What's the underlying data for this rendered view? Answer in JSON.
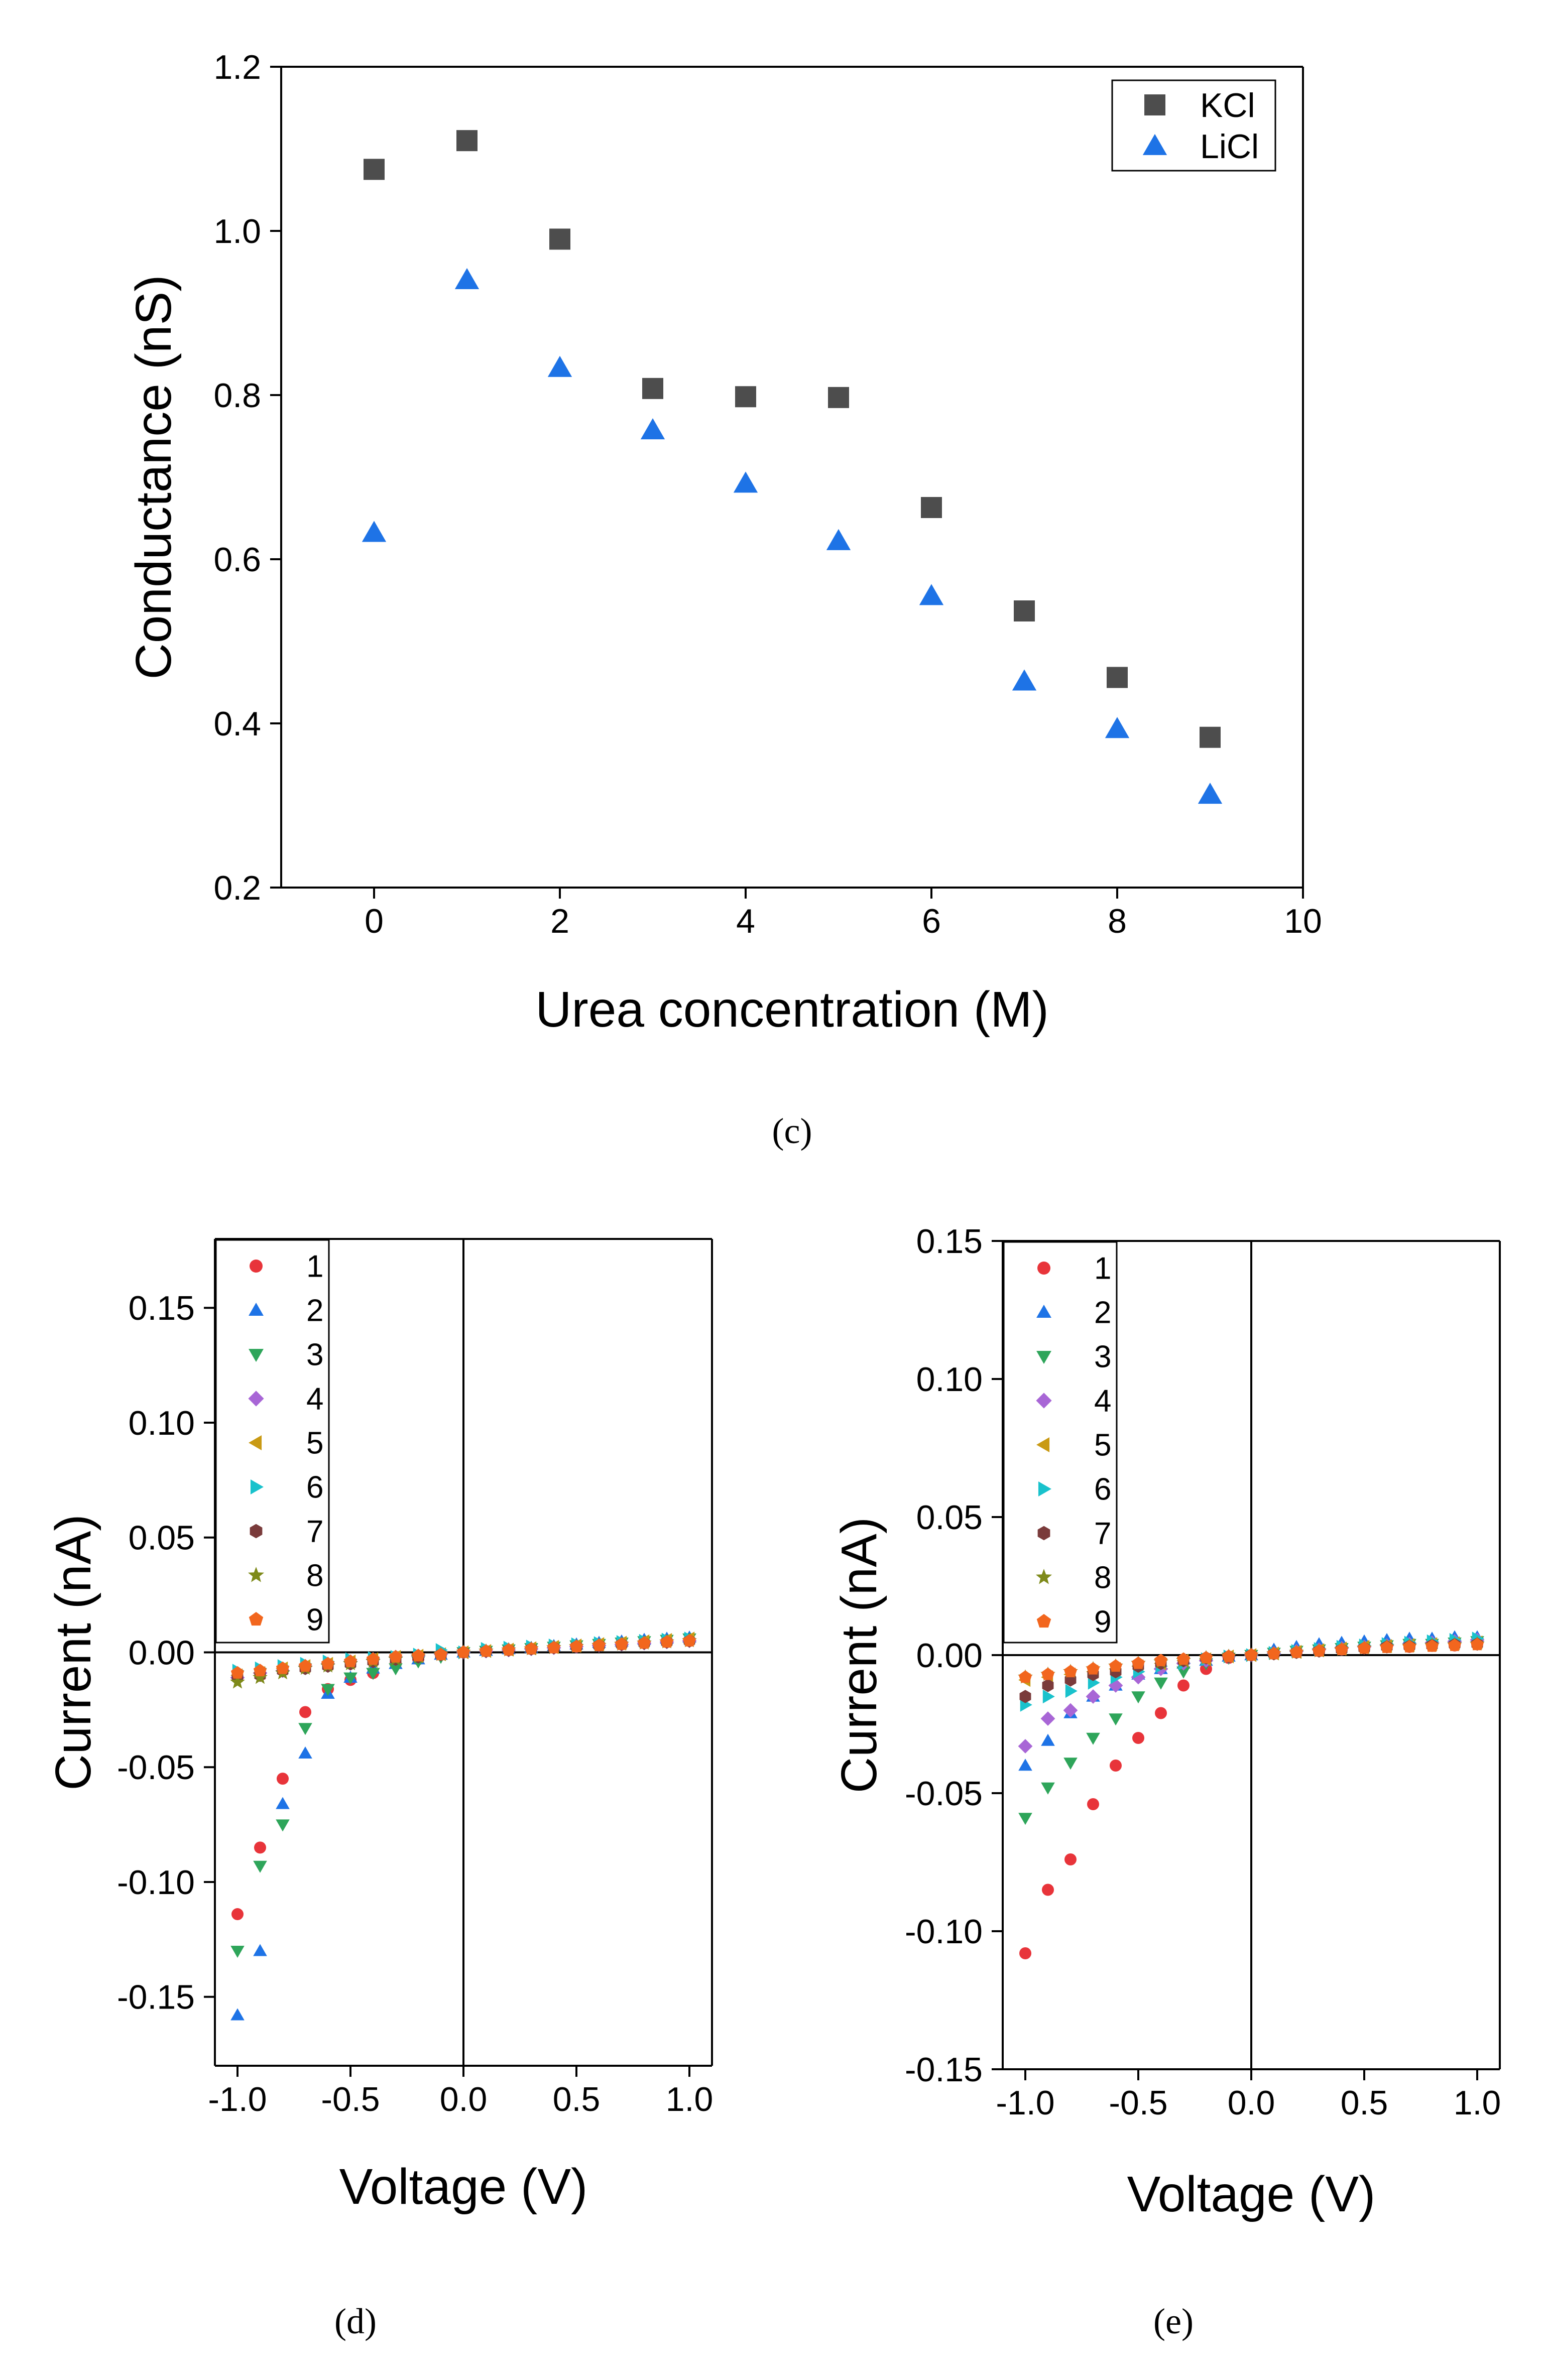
{
  "chart_data": [
    {
      "id": "c",
      "type": "scatter",
      "caption": "(c)",
      "xlabel": "Urea concentration (M)",
      "ylabel": "Conductance (nS)",
      "xlim": [
        -1,
        10
      ],
      "ylim": [
        0.2,
        1.2
      ],
      "xticks": [
        0,
        2,
        4,
        6,
        8,
        10
      ],
      "xtick_labels": [
        "0",
        "2",
        "4",
        "6",
        "8",
        "10"
      ],
      "yticks": [
        0.2,
        0.4,
        0.6,
        0.8,
        1.0,
        1.2
      ],
      "ytick_labels": [
        "0.2",
        "0.4",
        "0.6",
        "0.8",
        "1.0",
        "1.2"
      ],
      "legend_position": "top-right",
      "series": [
        {
          "name": "KCl",
          "marker": "square",
          "color": "#4d4d4d",
          "x": [
            0,
            1,
            2,
            3,
            4,
            5,
            6,
            7,
            8,
            9
          ],
          "y": [
            1.075,
            1.11,
            0.99,
            0.808,
            0.798,
            0.797,
            0.663,
            0.537,
            0.456,
            0.383
          ]
        },
        {
          "name": "LiCl",
          "marker": "triangle-up",
          "color": "#1e73e6",
          "x": [
            0,
            1,
            2,
            3,
            4,
            5,
            6,
            7,
            8,
            9
          ],
          "y": [
            0.632,
            0.94,
            0.833,
            0.757,
            0.692,
            0.622,
            0.555,
            0.451,
            0.393,
            0.313
          ]
        }
      ]
    },
    {
      "id": "d",
      "type": "scatter",
      "caption": "(d)",
      "xlabel": "Voltage (V)",
      "ylabel": "Current (nA)",
      "xlim": [
        -1.1,
        1.1
      ],
      "ylim": [
        -0.18,
        0.18
      ],
      "xticks": [
        -1.0,
        -0.5,
        0.0,
        0.5,
        1.0
      ],
      "xtick_labels": [
        "-1.0",
        "-0.5",
        "0.0",
        "0.5",
        "1.0"
      ],
      "yticks": [
        -0.15,
        -0.1,
        -0.05,
        0.0,
        0.05,
        0.1,
        0.15
      ],
      "ytick_labels": [
        "-0.15",
        "-0.10",
        "-0.05",
        "0.00",
        "0.05",
        "0.10",
        "0.15"
      ],
      "legend_position": "top-left",
      "x": [
        -1.0,
        -0.9,
        -0.8,
        -0.7,
        -0.6,
        -0.5,
        -0.4,
        -0.3,
        -0.2,
        -0.1,
        0.0,
        0.1,
        0.2,
        0.3,
        0.4,
        0.5,
        0.6,
        0.7,
        0.8,
        0.9,
        1.0
      ],
      "series": [
        {
          "name": "1",
          "marker": "circle",
          "color": "#e8343a",
          "y": [
            -0.114,
            -0.085,
            -0.055,
            -0.026,
            -0.016,
            -0.012,
            -0.009,
            -0.005,
            -0.003,
            -0.001,
            0.0,
            0.0005,
            0.001,
            0.0015,
            0.002,
            0.0025,
            0.003,
            0.0035,
            0.004,
            0.0045,
            0.005
          ]
        },
        {
          "name": "2",
          "marker": "triangle-up",
          "color": "#1e73e6",
          "y": [
            -0.158,
            -0.13,
            -0.066,
            -0.044,
            -0.018,
            -0.011,
            -0.007,
            -0.005,
            -0.003,
            -0.001,
            0.0,
            0.0007,
            0.0014,
            0.002,
            0.0028,
            0.0035,
            0.0042,
            0.0048,
            0.0055,
            0.006,
            0.0065
          ]
        },
        {
          "name": "3",
          "marker": "triangle-down",
          "color": "#2ea55a",
          "y": [
            -0.13,
            -0.093,
            -0.075,
            -0.033,
            -0.016,
            -0.011,
            -0.009,
            -0.007,
            -0.004,
            -0.002,
            0.0,
            0.0006,
            0.0012,
            0.0018,
            0.0024,
            0.003,
            0.0036,
            0.0042,
            0.0048,
            0.0054,
            0.006
          ]
        },
        {
          "name": "4",
          "marker": "diamond",
          "color": "#a866d6",
          "y": [
            -0.011,
            -0.009,
            -0.008,
            -0.006,
            -0.005,
            -0.004,
            -0.003,
            -0.002,
            -0.0015,
            -0.0008,
            0.0,
            0.0005,
            0.001,
            0.0015,
            0.002,
            0.0025,
            0.003,
            0.0035,
            0.004,
            0.0045,
            0.005
          ]
        },
        {
          "name": "5",
          "marker": "triangle-left",
          "color": "#c99a14",
          "y": [
            -0.01,
            -0.009,
            -0.007,
            -0.006,
            -0.005,
            -0.004,
            -0.003,
            -0.002,
            -0.0015,
            -0.0008,
            0.0,
            0.0006,
            0.0012,
            0.0018,
            0.0024,
            0.003,
            0.0036,
            0.0042,
            0.0048,
            0.0054,
            0.006
          ]
        },
        {
          "name": "6",
          "marker": "triangle-right",
          "color": "#19c2cc",
          "y": [
            -0.008,
            -0.007,
            -0.006,
            -0.005,
            -0.004,
            -0.003,
            -0.0025,
            -0.002,
            -0.001,
            0.001,
            0.0,
            0.0015,
            0.002,
            0.0025,
            0.003,
            0.0035,
            0.004,
            0.0045,
            0.005,
            0.0055,
            0.006
          ]
        },
        {
          "name": "7",
          "marker": "hexagon",
          "color": "#7a3b3b",
          "y": [
            -0.011,
            -0.01,
            -0.008,
            -0.007,
            -0.006,
            -0.005,
            -0.004,
            -0.003,
            -0.002,
            -0.001,
            0.0,
            0.0005,
            0.001,
            0.0015,
            0.002,
            0.0025,
            0.003,
            0.0035,
            0.004,
            0.0045,
            0.005
          ]
        },
        {
          "name": "8",
          "marker": "star",
          "color": "#7e8a1a",
          "y": [
            -0.013,
            -0.011,
            -0.009,
            -0.007,
            -0.006,
            -0.005,
            -0.004,
            -0.003,
            -0.002,
            -0.001,
            0.0,
            0.0005,
            0.001,
            0.0015,
            0.002,
            0.0025,
            0.003,
            0.0035,
            0.004,
            0.0045,
            0.005
          ]
        },
        {
          "name": "9",
          "marker": "pentagon",
          "color": "#f2661e",
          "y": [
            -0.009,
            -0.008,
            -0.007,
            -0.006,
            -0.005,
            -0.004,
            -0.003,
            -0.002,
            -0.0015,
            -0.001,
            0.0,
            0.0005,
            0.001,
            0.0015,
            0.002,
            0.0025,
            0.003,
            0.0035,
            0.004,
            0.0045,
            0.005
          ]
        }
      ]
    },
    {
      "id": "e",
      "type": "scatter",
      "caption": "(e)",
      "xlabel": "Voltage (V)",
      "ylabel": "Current (nA)",
      "xlim": [
        -1.1,
        1.1
      ],
      "ylim": [
        -0.15,
        0.15
      ],
      "xticks": [
        -1.0,
        -0.5,
        0.0,
        0.5,
        1.0
      ],
      "xtick_labels": [
        "-1.0",
        "-0.5",
        "0.0",
        "0.5",
        "1.0"
      ],
      "yticks": [
        -0.15,
        -0.1,
        -0.05,
        0.0,
        0.05,
        0.1,
        0.15
      ],
      "ytick_labels": [
        "-0.15",
        "-0.10",
        "-0.05",
        "0.00",
        "0.05",
        "0.10",
        "0.15"
      ],
      "legend_position": "top-left",
      "x": [
        -1.0,
        -0.9,
        -0.8,
        -0.7,
        -0.6,
        -0.5,
        -0.4,
        -0.3,
        -0.2,
        -0.1,
        0.0,
        0.1,
        0.2,
        0.3,
        0.4,
        0.5,
        0.6,
        0.7,
        0.8,
        0.9,
        1.0
      ],
      "series": [
        {
          "name": "1",
          "marker": "circle",
          "color": "#e8343a",
          "y": [
            -0.108,
            -0.085,
            -0.074,
            -0.054,
            -0.04,
            -0.03,
            -0.021,
            -0.011,
            -0.005,
            -0.001,
            0.0,
            0.0005,
            0.001,
            0.0015,
            0.002,
            0.0025,
            0.003,
            0.003,
            0.0035,
            0.0035,
            0.004
          ]
        },
        {
          "name": "2",
          "marker": "triangle-up",
          "color": "#1e73e6",
          "y": [
            -0.04,
            -0.031,
            -0.021,
            -0.015,
            -0.011,
            -0.007,
            -0.005,
            -0.003,
            -0.002,
            -0.0005,
            0.0,
            0.002,
            0.003,
            0.004,
            0.0045,
            0.005,
            0.0055,
            0.006,
            0.006,
            0.0065,
            0.0065
          ]
        },
        {
          "name": "3",
          "marker": "triangle-down",
          "color": "#2ea55a",
          "y": [
            -0.059,
            -0.048,
            -0.039,
            -0.03,
            -0.023,
            -0.015,
            -0.01,
            -0.006,
            -0.003,
            -0.001,
            0.0,
            0.0008,
            0.0015,
            0.002,
            0.0025,
            0.003,
            0.0035,
            0.004,
            0.004,
            0.0045,
            0.005
          ]
        },
        {
          "name": "4",
          "marker": "diamond",
          "color": "#a866d6",
          "y": [
            -0.033,
            -0.023,
            -0.02,
            -0.015,
            -0.011,
            -0.008,
            -0.005,
            -0.003,
            -0.002,
            -0.0005,
            0.0,
            0.0007,
            0.0014,
            0.002,
            0.0025,
            0.003,
            0.0035,
            0.004,
            0.0045,
            0.005,
            0.0055
          ]
        },
        {
          "name": "5",
          "marker": "triangle-left",
          "color": "#c99a14",
          "y": [
            -0.009,
            -0.008,
            -0.007,
            -0.006,
            -0.005,
            -0.004,
            -0.003,
            -0.002,
            -0.0015,
            -0.0005,
            0.0,
            0.0006,
            0.0012,
            0.0018,
            0.0024,
            0.003,
            0.0033,
            0.0036,
            0.004,
            0.0043,
            0.0046
          ]
        },
        {
          "name": "6",
          "marker": "triangle-right",
          "color": "#19c2cc",
          "y": [
            -0.018,
            -0.015,
            -0.013,
            -0.01,
            -0.008,
            -0.006,
            -0.004,
            -0.003,
            -0.0015,
            -0.0005,
            0.0,
            0.0008,
            0.0015,
            0.0022,
            0.003,
            0.0035,
            0.004,
            0.0045,
            0.005,
            0.0055,
            0.006
          ]
        },
        {
          "name": "7",
          "marker": "hexagon",
          "color": "#7a3b3b",
          "y": [
            -0.015,
            -0.011,
            -0.009,
            -0.007,
            -0.006,
            -0.004,
            -0.003,
            -0.002,
            -0.001,
            -0.0005,
            0.0,
            0.0005,
            0.001,
            0.0015,
            0.002,
            0.0025,
            0.003,
            0.0032,
            0.0035,
            0.0038,
            0.004
          ]
        },
        {
          "name": "8",
          "marker": "star",
          "color": "#7e8a1a",
          "y": [
            -0.008,
            -0.007,
            -0.006,
            -0.005,
            -0.004,
            -0.003,
            -0.0025,
            -0.002,
            -0.001,
            -0.0005,
            0.0,
            0.0005,
            0.001,
            0.0015,
            0.002,
            0.0025,
            0.003,
            0.0032,
            0.0035,
            0.0037,
            0.004
          ]
        },
        {
          "name": "9",
          "marker": "pentagon",
          "color": "#f2661e",
          "y": [
            -0.008,
            -0.007,
            -0.006,
            -0.005,
            -0.004,
            -0.003,
            -0.002,
            -0.0015,
            -0.001,
            -0.0005,
            0.0,
            0.0005,
            0.001,
            0.0015,
            0.002,
            0.0025,
            0.0028,
            0.003,
            0.0032,
            0.0035,
            0.0038
          ]
        }
      ]
    }
  ]
}
